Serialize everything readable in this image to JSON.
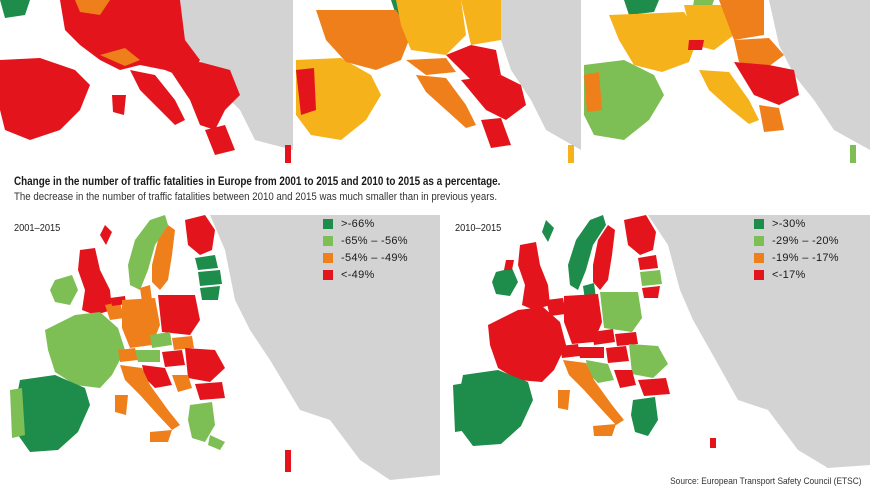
{
  "caption": {
    "title": "Change in the number of traffic fatalities in Europe from 2001 to 2015 and 2010 to 2015 as a percentage.",
    "subtitle": "The decrease in the number of traffic fatalities between 2010 and 2015 was much smaller than in previous years."
  },
  "maps": [
    {
      "period": "2001–2015",
      "legend": [
        {
          "label": ">-66%",
          "color": "#1e8c4a"
        },
        {
          "label": "-65% – -56%",
          "color": "#7dbf55"
        },
        {
          "label": "-54% – -49%",
          "color": "#ef7f1a"
        },
        {
          "label": "<-49%",
          "color": "#e3141b"
        }
      ]
    },
    {
      "period": "2010–2015",
      "legend": [
        {
          "label": ">-30%",
          "color": "#1e8c4a"
        },
        {
          "label": "-29% – -20%",
          "color": "#7dbf55"
        },
        {
          "label": "-19% – -17%",
          "color": "#ef7f1a"
        },
        {
          "label": "<-17%",
          "color": "#e3141b"
        }
      ]
    }
  ],
  "colors": {
    "non_member": "#d3d3d3",
    "sea": "#ffffff",
    "top_yellow": "#f6b21a"
  },
  "source": "Source: European Transport Safety Council (ETSC)"
}
